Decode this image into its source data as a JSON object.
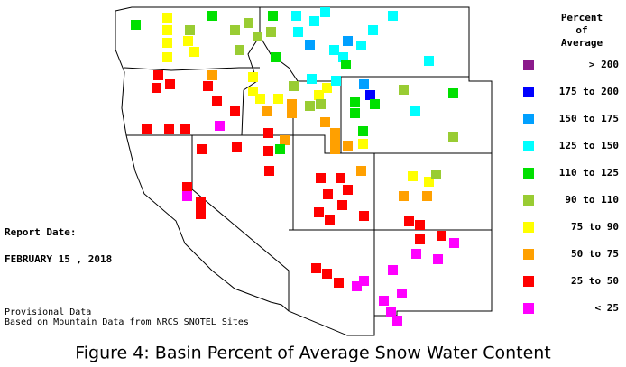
{
  "legend": {
    "title": [
      "Percent",
      "of",
      "Average"
    ],
    "items": [
      {
        "label": "> 200",
        "color": "#8b1a8b"
      },
      {
        "label": "175 to 200",
        "color": "#0000ff"
      },
      {
        "label": "150 to 175",
        "color": "#00a0ff"
      },
      {
        "label": "125 to 150",
        "color": "#00ffff"
      },
      {
        "label": "110 to 125",
        "color": "#00e000"
      },
      {
        "label": "90 to 110",
        "color": "#99cc33"
      },
      {
        "label": "75 to 90",
        "color": "#ffff00"
      },
      {
        "label": "50 to 75",
        "color": "#ffa000"
      },
      {
        "label": "25 to 50",
        "color": "#ff0000"
      },
      {
        "label": "< 25",
        "color": "#ff00ff"
      }
    ]
  },
  "report": {
    "label": "Report Date:",
    "date": "FEBRUARY 15 , 2018"
  },
  "notes": [
    "Provisional Data",
    "Based on Mountain Data from NRCS SNOTEL Sites"
  ],
  "caption": "Figure 4: Basin Percent of Average Snow Water Content"
}
